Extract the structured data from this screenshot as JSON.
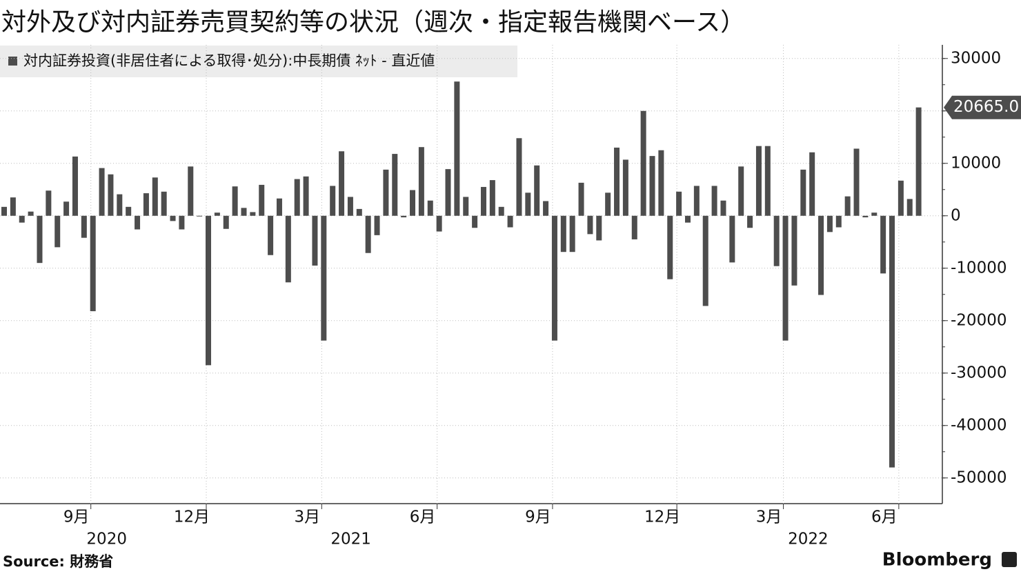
{
  "chart_data": {
    "type": "bar",
    "title": "対外及び対内証券売買契約等の状況（週次・指定報告機関ベース）",
    "source": "Source: 財務省",
    "brand": "Bloomberg",
    "categories": [
      null,
      null,
      null,
      null,
      null,
      null,
      null,
      null,
      null,
      null,
      "9月",
      null,
      null,
      null,
      null,
      null,
      null,
      null,
      null,
      null,
      null,
      null,
      null,
      "12月",
      null,
      null,
      null,
      null,
      null,
      null,
      null,
      null,
      null,
      null,
      null,
      null,
      "3月",
      null,
      null,
      null,
      null,
      null,
      null,
      null,
      null,
      null,
      null,
      null,
      null,
      "6月",
      null,
      null,
      null,
      null,
      null,
      null,
      null,
      null,
      null,
      null,
      null,
      null,
      "9月",
      null,
      null,
      null,
      null,
      null,
      null,
      null,
      null,
      null,
      null,
      null,
      null,
      null,
      "12月",
      null,
      null,
      null,
      null,
      null,
      null,
      null,
      null,
      null,
      null,
      null,
      "3月",
      null,
      null,
      null,
      null,
      null,
      null,
      null,
      null,
      null,
      null,
      null,
      null,
      "6月",
      null,
      null
    ],
    "years": [
      "2020",
      "2021",
      "2022"
    ],
    "series": [
      {
        "name": "対内証券投資(非居住者による取得･処分):中長期債 ﾈｯﾄ - 直近値",
        "color": "#4d4d4d",
        "values": [
          1700,
          3500,
          -1300,
          800,
          -9000,
          4800,
          -6000,
          2700,
          11300,
          -4200,
          -18200,
          9100,
          7900,
          4100,
          1700,
          -2600,
          4300,
          7300,
          4600,
          -1000,
          -2600,
          9400,
          -100,
          -28500,
          600,
          -2500,
          5600,
          1500,
          700,
          5900,
          -7500,
          3300,
          -12700,
          7000,
          7500,
          -9500,
          -23800,
          5700,
          12300,
          3600,
          1300,
          -7100,
          -3700,
          8800,
          11800,
          -300,
          4900,
          13100,
          2900,
          -3000,
          8900,
          25600,
          3600,
          -2300,
          5500,
          6800,
          1700,
          -2200,
          14800,
          4400,
          9600,
          2800,
          -23800,
          -6900,
          -6900,
          6300,
          -3500,
          -4700,
          4400,
          13000,
          10700,
          -4500,
          20000,
          11400,
          12500,
          -12100,
          4600,
          -1300,
          5700,
          -17200,
          5700,
          2900,
          -8900,
          9400,
          -2300,
          13300,
          13300,
          -9600,
          -23800,
          -13300,
          8800,
          12100,
          -15100,
          -3100,
          -2200,
          3700,
          12800,
          -300,
          600,
          -11000,
          -48000,
          6700,
          3200,
          20665
        ],
        "value_labels": [
          null,
          null,
          null,
          null,
          null,
          null,
          null,
          null,
          null,
          null,
          null,
          null,
          null,
          null,
          null,
          null,
          null,
          null,
          null,
          null,
          null,
          null,
          null,
          null,
          null,
          null,
          null,
          null,
          null,
          null,
          null,
          null,
          null,
          null,
          null,
          null,
          null,
          null,
          null,
          null,
          null,
          null,
          null,
          null,
          null,
          null,
          null,
          null,
          null,
          null,
          null,
          null,
          null,
          null,
          null,
          null,
          null,
          null,
          null,
          null,
          null,
          null,
          null,
          null,
          null,
          null,
          null,
          null,
          null,
          null,
          null,
          null,
          null,
          null,
          null,
          null,
          null,
          null,
          null,
          null,
          null,
          null,
          null,
          null,
          null,
          null,
          null,
          null,
          null,
          null,
          null,
          null,
          null,
          null,
          null,
          null,
          null,
          null,
          null,
          null,
          null,
          null,
          null,
          "20665.0"
        ]
      }
    ],
    "ylim": [
      -54900,
      32600
    ],
    "yticks": [
      30000,
      20000,
      10000,
      0,
      -10000,
      -20000,
      -30000,
      -40000,
      -50000
    ],
    "grid": true
  }
}
